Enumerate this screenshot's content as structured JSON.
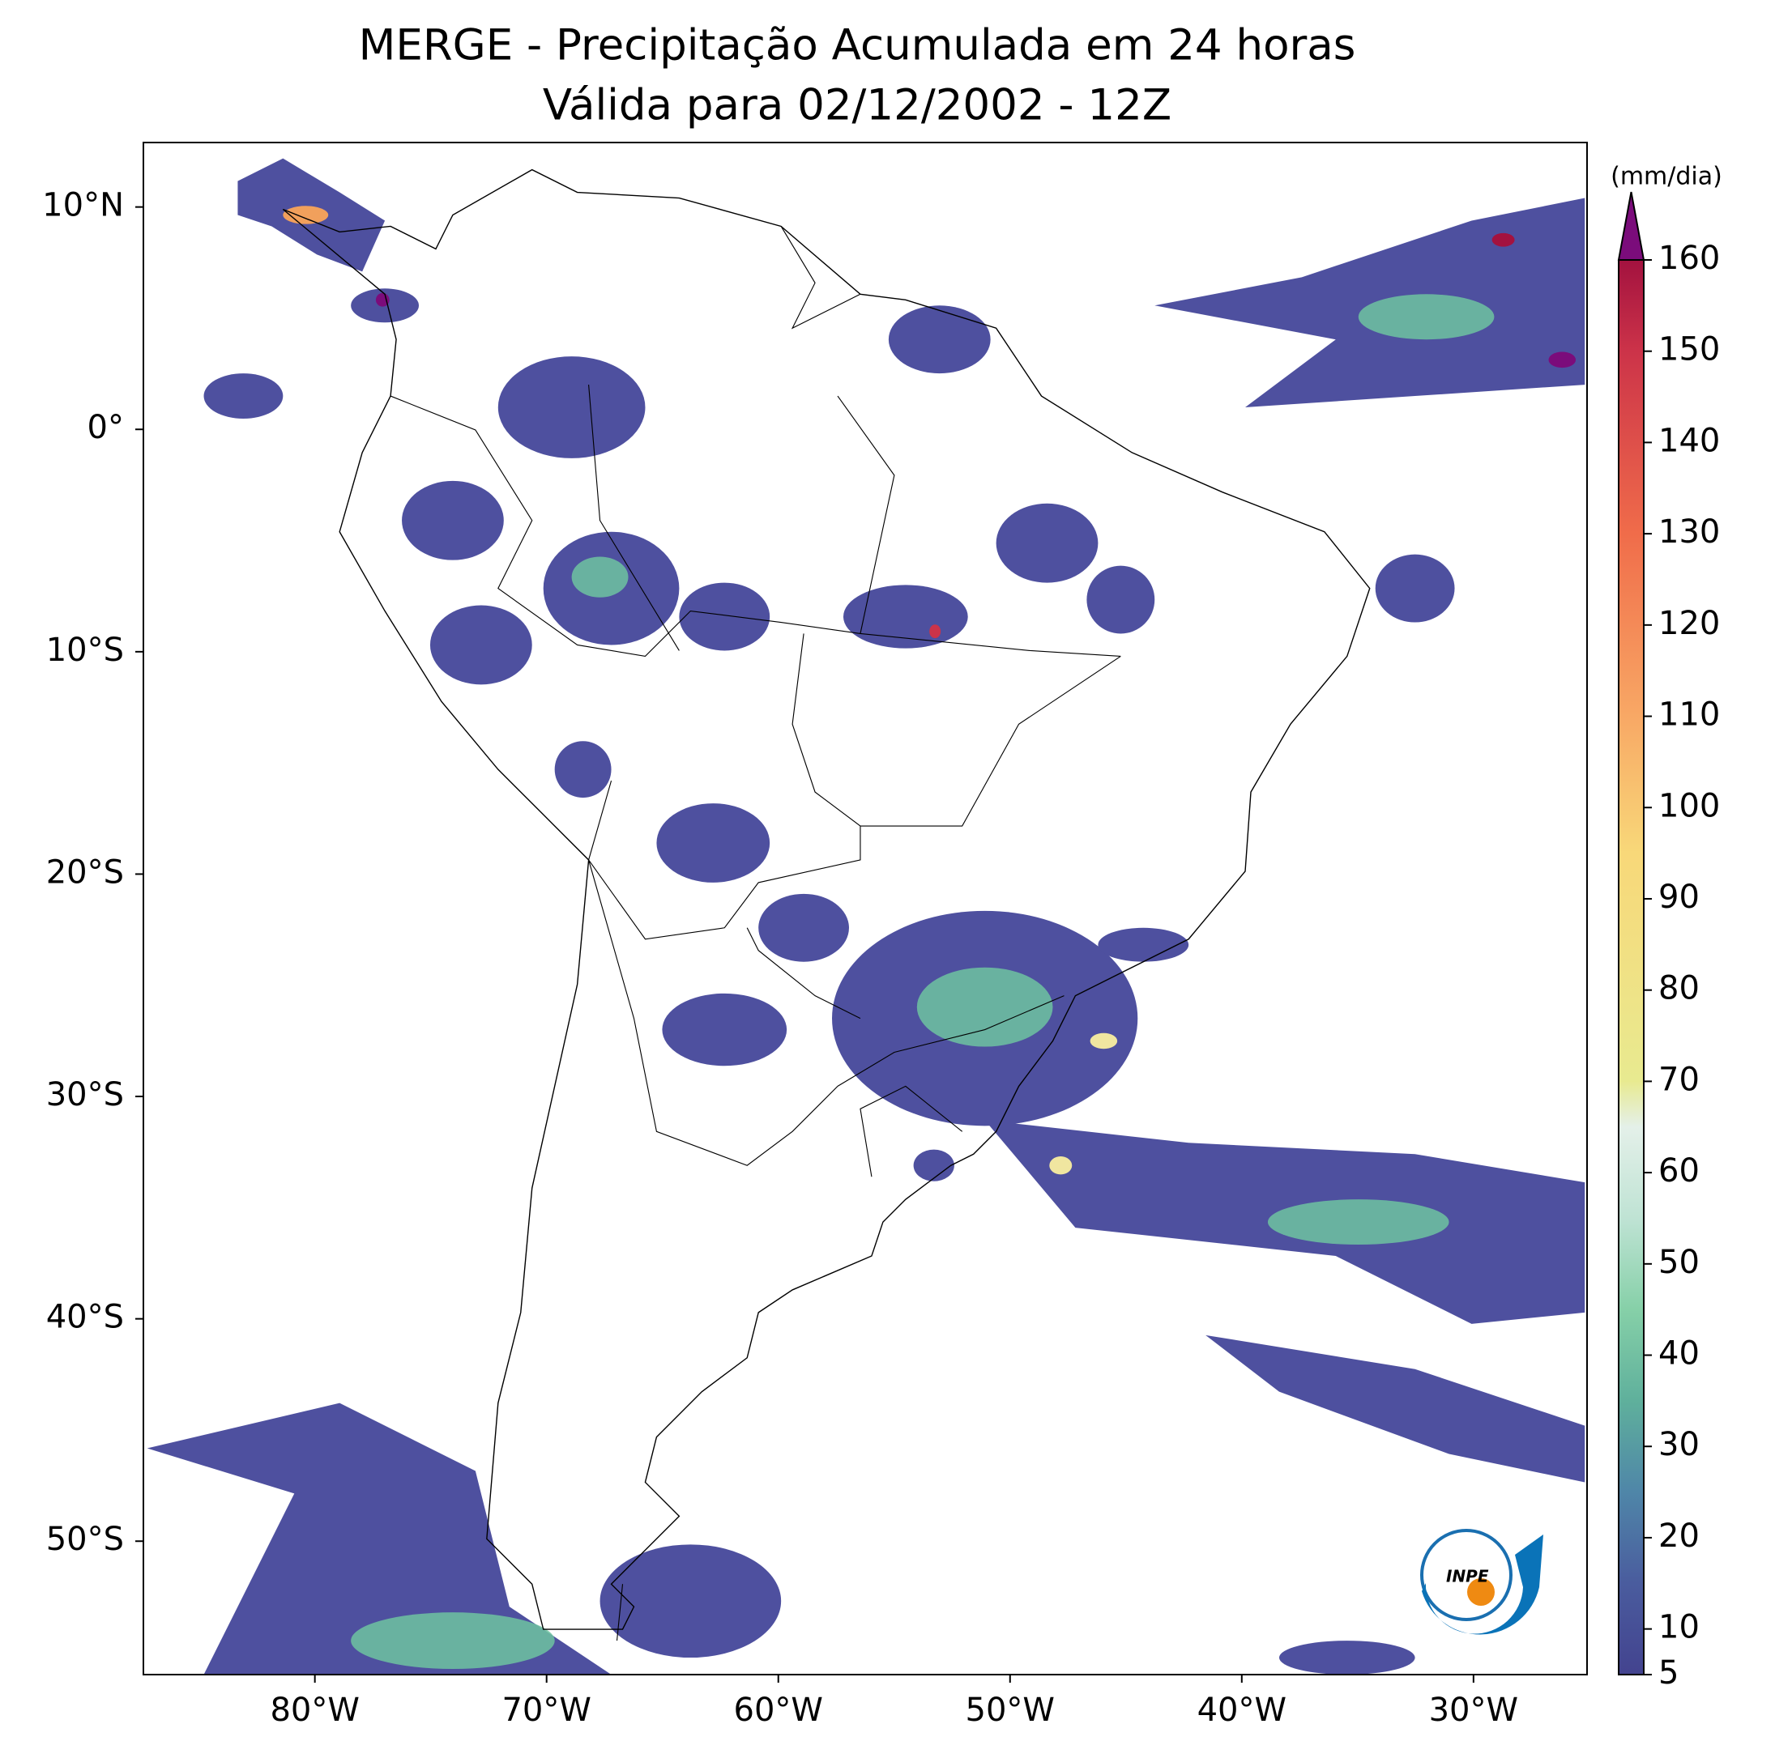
{
  "chart_data": {
    "type": "map",
    "title": "MERGE - Precipitação Acumulada em 24 horas",
    "subtitle": "Válida para 02/12/2002 - 12Z",
    "xlim": [
      -87.4,
      -25.1
    ],
    "ylim": [
      -56.0,
      12.9
    ],
    "xticks": [
      {
        "value": -80,
        "label": "80°W"
      },
      {
        "value": -70,
        "label": "70°W"
      },
      {
        "value": -60,
        "label": "60°W"
      },
      {
        "value": -50,
        "label": "50°W"
      },
      {
        "value": -40,
        "label": "40°W"
      },
      {
        "value": -30,
        "label": "30°W"
      }
    ],
    "yticks": [
      {
        "value": 10,
        "label": "10°N"
      },
      {
        "value": 0,
        "label": "0°"
      },
      {
        "value": -10,
        "label": "10°S"
      },
      {
        "value": -20,
        "label": "20°S"
      },
      {
        "value": -30,
        "label": "30°S"
      },
      {
        "value": -40,
        "label": "40°S"
      },
      {
        "value": -50,
        "label": "50°S"
      }
    ],
    "colorbar": {
      "label": "(mm/dia)",
      "lim": [
        5,
        160
      ],
      "ticks": [
        5,
        10,
        20,
        30,
        40,
        50,
        60,
        70,
        80,
        90,
        100,
        110,
        120,
        130,
        140,
        150,
        160
      ],
      "color_stops": [
        [
          5,
          "#43438f"
        ],
        [
          15,
          "#4a5c9e"
        ],
        [
          25,
          "#4f86a8"
        ],
        [
          35,
          "#5fb09c"
        ],
        [
          45,
          "#86d0a8"
        ],
        [
          55,
          "#bfe3d4"
        ],
        [
          65,
          "#e4f0e9"
        ],
        [
          70,
          "#e8ea90"
        ],
        [
          95,
          "#f8d879"
        ],
        [
          110,
          "#f8a865"
        ],
        [
          130,
          "#f06c4a"
        ],
        [
          150,
          "#cc3349"
        ],
        [
          160,
          "#a3123f"
        ]
      ],
      "extend_color": "#7b0c7b"
    },
    "logo_text": "INPE"
  }
}
